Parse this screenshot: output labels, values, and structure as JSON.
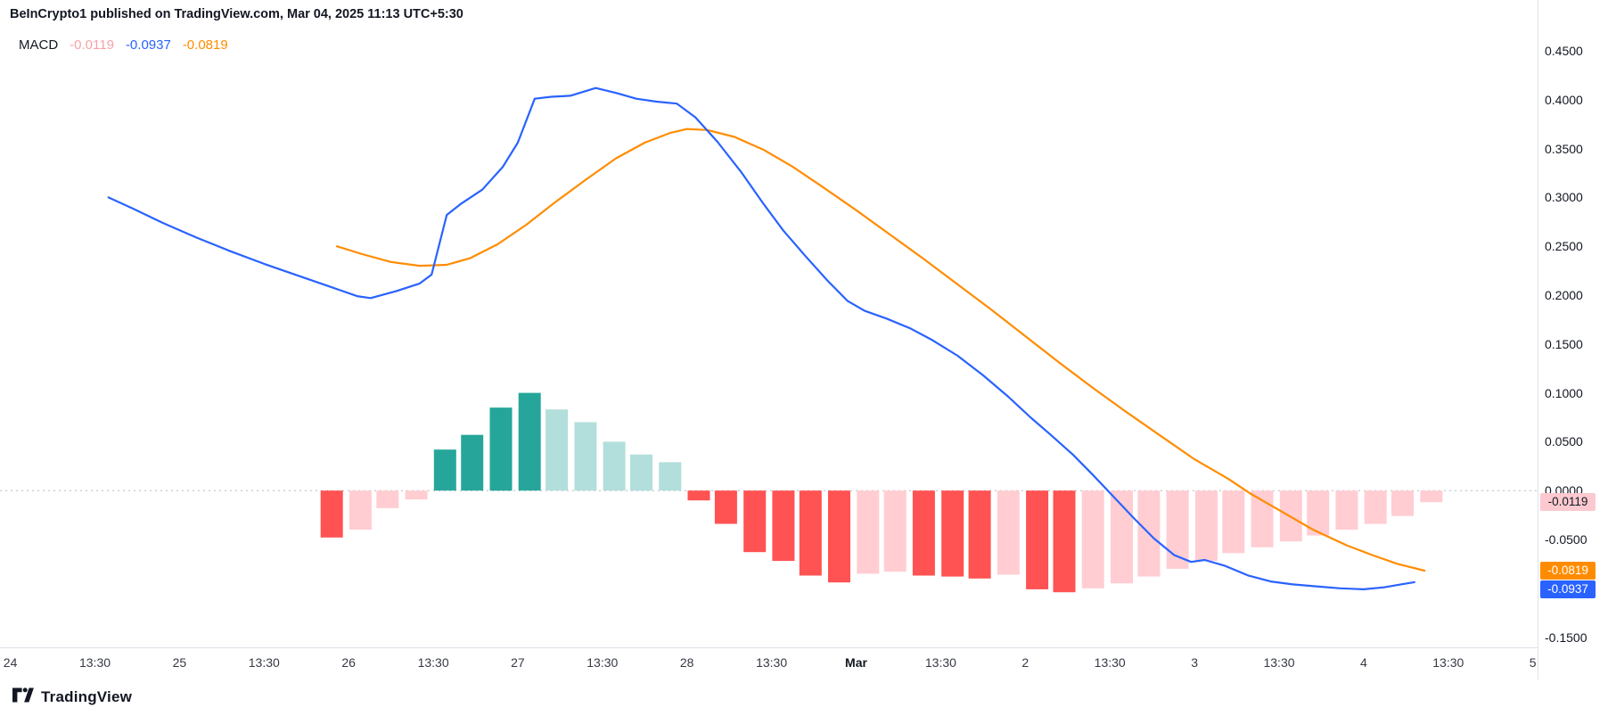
{
  "header": {
    "attribution": "BeInCrypto1 published on TradingView.com, Mar 04, 2025 11:13 UTC+5:30"
  },
  "legend": {
    "indicator": "MACD",
    "hist_value": "-0.0119",
    "macd_value": "-0.0937",
    "signal_value": "-0.0819"
  },
  "price_axis": {
    "ticks": [
      {
        "v": 0.45,
        "t": "0.4500"
      },
      {
        "v": 0.4,
        "t": "0.4000"
      },
      {
        "v": 0.35,
        "t": "0.3500"
      },
      {
        "v": 0.3,
        "t": "0.3000"
      },
      {
        "v": 0.25,
        "t": "0.2500"
      },
      {
        "v": 0.2,
        "t": "0.2000"
      },
      {
        "v": 0.15,
        "t": "0.1500"
      },
      {
        "v": 0.1,
        "t": "0.1000"
      },
      {
        "v": 0.05,
        "t": "0.0500"
      },
      {
        "v": 0.0,
        "t": "0.0000"
      },
      {
        "v": -0.05,
        "t": "-0.0500"
      },
      {
        "v": -0.1,
        "t": "-0.1000"
      },
      {
        "v": -0.15,
        "t": "-0.1500"
      }
    ],
    "tags": [
      {
        "name": "histogram-price-tag",
        "label": "-0.0119",
        "value": -0.0119,
        "bg": "#FBC9CF",
        "fg": "#131722"
      },
      {
        "name": "signal-price-tag",
        "label": "-0.0819",
        "value": -0.0819,
        "bg": "#FF8C00",
        "fg": "#FFFFFF"
      },
      {
        "name": "macd-price-tag",
        "label": "-0.0937",
        "value": -0.0937,
        "bg": "#2962FF",
        "fg": "#FFFFFF"
      }
    ]
  },
  "time_axis": {
    "labels": [
      {
        "x": 0.0,
        "t": "24"
      },
      {
        "x": 0.5,
        "t": "13:30"
      },
      {
        "x": 1.0,
        "t": "25"
      },
      {
        "x": 1.5,
        "t": "13:30"
      },
      {
        "x": 2.0,
        "t": "26"
      },
      {
        "x": 2.5,
        "t": "13:30"
      },
      {
        "x": 3.0,
        "t": "27"
      },
      {
        "x": 3.5,
        "t": "13:30"
      },
      {
        "x": 4.0,
        "t": "28"
      },
      {
        "x": 4.5,
        "t": "13:30"
      },
      {
        "x": 5.0,
        "t": "Mar",
        "bold": true
      },
      {
        "x": 5.5,
        "t": "13:30"
      },
      {
        "x": 6.0,
        "t": "2"
      },
      {
        "x": 6.5,
        "t": "13:30"
      },
      {
        "x": 7.0,
        "t": "3"
      },
      {
        "x": 7.5,
        "t": "13:30"
      },
      {
        "x": 8.0,
        "t": "4"
      },
      {
        "x": 8.5,
        "t": "13:30"
      },
      {
        "x": 9.0,
        "t": "5"
      }
    ]
  },
  "footer": {
    "brand": "TradingView"
  },
  "chart_data": {
    "type": "line",
    "subtype": "MACD indicator (two lines + histogram bars)",
    "title": "MACD",
    "x_unit": "days (Feb 24 = 0 ... Mar 5 = 9), 4h bars",
    "xlim": [
      -0.061,
      9.028
    ],
    "ylim": [
      -0.1604,
      0.4701
    ],
    "zero_line": 0,
    "grid": false,
    "current": {
      "histogram": -0.0119,
      "macd": -0.0937,
      "signal": -0.0819
    },
    "colors": {
      "macd": "#2962FF",
      "signal": "#FF8C00",
      "grow_above": "#26A69A",
      "fall_above": "#B2DFDB",
      "fall_below": "#FF5252",
      "grow_below": "#FFCDD2",
      "legend_hist": "#F9A1A7",
      "zero": "#B6BAC3"
    },
    "series": [
      {
        "name": "MACD line",
        "color": "#2962FF",
        "points": [
          [
            0.58,
            0.3
          ],
          [
            0.72,
            0.289
          ],
          [
            0.9,
            0.274
          ],
          [
            1.1,
            0.259
          ],
          [
            1.3,
            0.245
          ],
          [
            1.5,
            0.232
          ],
          [
            1.7,
            0.22
          ],
          [
            1.9,
            0.208
          ],
          [
            2.05,
            0.199
          ],
          [
            2.13,
            0.197
          ],
          [
            2.28,
            0.204
          ],
          [
            2.42,
            0.212
          ],
          [
            2.49,
            0.221
          ],
          [
            2.58,
            0.282
          ],
          [
            2.66,
            0.293
          ],
          [
            2.79,
            0.308
          ],
          [
            2.91,
            0.331
          ],
          [
            3.0,
            0.356
          ],
          [
            3.1,
            0.401
          ],
          [
            3.2,
            0.403
          ],
          [
            3.31,
            0.404
          ],
          [
            3.46,
            0.412
          ],
          [
            3.58,
            0.407
          ],
          [
            3.7,
            0.401
          ],
          [
            3.82,
            0.398
          ],
          [
            3.94,
            0.396
          ],
          [
            4.05,
            0.382
          ],
          [
            4.18,
            0.357
          ],
          [
            4.32,
            0.326
          ],
          [
            4.45,
            0.294
          ],
          [
            4.57,
            0.266
          ],
          [
            4.7,
            0.24
          ],
          [
            4.83,
            0.215
          ],
          [
            4.95,
            0.194
          ],
          [
            5.05,
            0.184
          ],
          [
            5.18,
            0.176
          ],
          [
            5.32,
            0.166
          ],
          [
            5.45,
            0.154
          ],
          [
            5.6,
            0.138
          ],
          [
            5.75,
            0.118
          ],
          [
            5.9,
            0.096
          ],
          [
            6.03,
            0.075
          ],
          [
            6.15,
            0.057
          ],
          [
            6.28,
            0.037
          ],
          [
            6.4,
            0.016
          ],
          [
            6.52,
            -0.006
          ],
          [
            6.64,
            -0.028
          ],
          [
            6.76,
            -0.049
          ],
          [
            6.88,
            -0.066
          ],
          [
            6.98,
            -0.073
          ],
          [
            7.06,
            -0.071
          ],
          [
            7.18,
            -0.077
          ],
          [
            7.32,
            -0.087
          ],
          [
            7.45,
            -0.093
          ],
          [
            7.58,
            -0.096
          ],
          [
            7.72,
            -0.098
          ],
          [
            7.86,
            -0.1
          ],
          [
            8.0,
            -0.101
          ],
          [
            8.12,
            -0.099
          ],
          [
            8.22,
            -0.096
          ],
          [
            8.3,
            -0.0937
          ]
        ]
      },
      {
        "name": "Signal line",
        "color": "#FF8C00",
        "points": [
          [
            1.93,
            0.25
          ],
          [
            2.08,
            0.242
          ],
          [
            2.25,
            0.234
          ],
          [
            2.42,
            0.23
          ],
          [
            2.58,
            0.231
          ],
          [
            2.72,
            0.238
          ],
          [
            2.88,
            0.252
          ],
          [
            3.05,
            0.272
          ],
          [
            3.22,
            0.295
          ],
          [
            3.4,
            0.318
          ],
          [
            3.58,
            0.34
          ],
          [
            3.75,
            0.356
          ],
          [
            3.9,
            0.366
          ],
          [
            4.0,
            0.37
          ],
          [
            4.12,
            0.369
          ],
          [
            4.28,
            0.362
          ],
          [
            4.45,
            0.349
          ],
          [
            4.62,
            0.332
          ],
          [
            4.8,
            0.311
          ],
          [
            5.0,
            0.287
          ],
          [
            5.2,
            0.262
          ],
          [
            5.4,
            0.237
          ],
          [
            5.6,
            0.211
          ],
          [
            5.8,
            0.185
          ],
          [
            6.0,
            0.158
          ],
          [
            6.2,
            0.131
          ],
          [
            6.4,
            0.105
          ],
          [
            6.6,
            0.08
          ],
          [
            6.8,
            0.056
          ],
          [
            7.0,
            0.032
          ],
          [
            7.2,
            0.012
          ],
          [
            7.33,
            -0.003
          ],
          [
            7.5,
            -0.02
          ],
          [
            7.7,
            -0.04
          ],
          [
            7.9,
            -0.056
          ],
          [
            8.05,
            -0.066
          ],
          [
            8.2,
            -0.075
          ],
          [
            8.36,
            -0.0819
          ]
        ]
      }
    ],
    "histogram": {
      "name": "MACD histogram",
      "bars": [
        {
          "x": 1.9,
          "v": -0.048,
          "c": "fall_below"
        },
        {
          "x": 2.07,
          "v": -0.04,
          "c": "grow_below"
        },
        {
          "x": 2.23,
          "v": -0.018,
          "c": "grow_below"
        },
        {
          "x": 2.4,
          "v": -0.009,
          "c": "grow_below"
        },
        {
          "x": 2.57,
          "v": 0.042,
          "c": "grow_above"
        },
        {
          "x": 2.73,
          "v": 0.057,
          "c": "grow_above"
        },
        {
          "x": 2.9,
          "v": 0.085,
          "c": "grow_above"
        },
        {
          "x": 3.07,
          "v": 0.1,
          "c": "grow_above"
        },
        {
          "x": 3.23,
          "v": 0.083,
          "c": "fall_above"
        },
        {
          "x": 3.4,
          "v": 0.07,
          "c": "fall_above"
        },
        {
          "x": 3.57,
          "v": 0.05,
          "c": "fall_above"
        },
        {
          "x": 3.73,
          "v": 0.037,
          "c": "fall_above"
        },
        {
          "x": 3.9,
          "v": 0.029,
          "c": "fall_above"
        },
        {
          "x": 4.07,
          "v": -0.01,
          "c": "fall_below"
        },
        {
          "x": 4.23,
          "v": -0.034,
          "c": "fall_below"
        },
        {
          "x": 4.4,
          "v": -0.063,
          "c": "fall_below"
        },
        {
          "x": 4.57,
          "v": -0.072,
          "c": "fall_below"
        },
        {
          "x": 4.73,
          "v": -0.087,
          "c": "fall_below"
        },
        {
          "x": 4.9,
          "v": -0.094,
          "c": "fall_below"
        },
        {
          "x": 5.07,
          "v": -0.085,
          "c": "grow_below"
        },
        {
          "x": 5.23,
          "v": -0.083,
          "c": "grow_below"
        },
        {
          "x": 5.4,
          "v": -0.087,
          "c": "fall_below"
        },
        {
          "x": 5.57,
          "v": -0.088,
          "c": "fall_below"
        },
        {
          "x": 5.73,
          "v": -0.09,
          "c": "fall_below"
        },
        {
          "x": 5.9,
          "v": -0.086,
          "c": "grow_below"
        },
        {
          "x": 6.07,
          "v": -0.101,
          "c": "fall_below"
        },
        {
          "x": 6.23,
          "v": -0.104,
          "c": "fall_below"
        },
        {
          "x": 6.4,
          "v": -0.1,
          "c": "grow_below"
        },
        {
          "x": 6.57,
          "v": -0.095,
          "c": "grow_below"
        },
        {
          "x": 6.73,
          "v": -0.088,
          "c": "grow_below"
        },
        {
          "x": 6.9,
          "v": -0.08,
          "c": "grow_below"
        },
        {
          "x": 7.07,
          "v": -0.072,
          "c": "grow_below"
        },
        {
          "x": 7.23,
          "v": -0.064,
          "c": "grow_below"
        },
        {
          "x": 7.4,
          "v": -0.058,
          "c": "grow_below"
        },
        {
          "x": 7.57,
          "v": -0.052,
          "c": "grow_below"
        },
        {
          "x": 7.73,
          "v": -0.046,
          "c": "grow_below"
        },
        {
          "x": 7.9,
          "v": -0.04,
          "c": "grow_below"
        },
        {
          "x": 8.07,
          "v": -0.034,
          "c": "grow_below"
        },
        {
          "x": 8.23,
          "v": -0.026,
          "c": "grow_below"
        },
        {
          "x": 8.4,
          "v": -0.0119,
          "c": "grow_below"
        }
      ]
    }
  }
}
